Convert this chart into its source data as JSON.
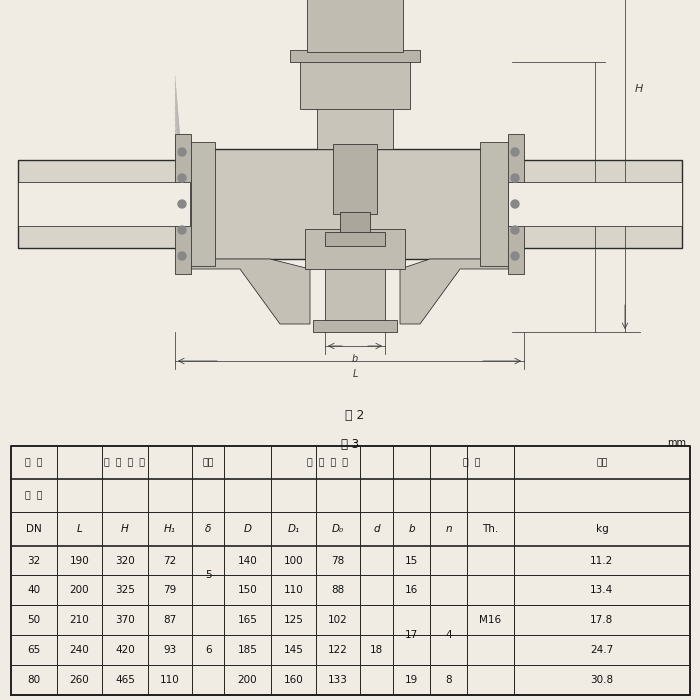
{
  "bg_color": "#f0ece4",
  "fig2_label": "图 2",
  "table_label": "表 3",
  "unit_label": "mm",
  "col_bounds": [
    0.0,
    0.068,
    0.135,
    0.202,
    0.268,
    0.315,
    0.383,
    0.45,
    0.515,
    0.563,
    0.618,
    0.672,
    0.742,
    1.0
  ],
  "col_labels": [
    "DN",
    "L",
    "H",
    "H₁",
    "δ",
    "D",
    "D₁",
    "D₀",
    "d",
    "b",
    "n",
    "Th.",
    "kg"
  ],
  "header1_groups": [
    [
      0,
      1,
      "公  称"
    ],
    [
      1,
      4,
      "结  构  尺  寸"
    ],
    [
      4,
      5,
      "壁厕"
    ],
    [
      5,
      10,
      "法  兰  尺  寸"
    ],
    [
      10,
      12,
      "螺  栓"
    ],
    [
      12,
      13,
      "重量"
    ]
  ],
  "header2_col0": "通  径",
  "data_rows": [
    [
      "32",
      "190",
      "320",
      "72",
      "",
      "140",
      "100",
      "78",
      "",
      "15",
      "",
      "",
      "11.2"
    ],
    [
      "40",
      "200",
      "325",
      "79",
      "",
      "150",
      "110",
      "88",
      "",
      "16",
      "",
      "",
      "13.4"
    ],
    [
      "50",
      "210",
      "370",
      "87",
      "",
      "165",
      "125",
      "102",
      "",
      "",
      "",
      "M16",
      "17.8"
    ],
    [
      "65",
      "240",
      "420",
      "93",
      "",
      "185",
      "145",
      "122",
      "",
      "",
      "",
      "",
      "24.7"
    ],
    [
      "80",
      "260",
      "465",
      "110",
      "",
      "200",
      "160",
      "133",
      "",
      "19",
      "8",
      "",
      "30.8"
    ]
  ],
  "delta_top": "5",
  "delta_bot": "6",
  "d_merged": "18",
  "b_mid": "17",
  "n_top": "4",
  "Th_all": "M16"
}
